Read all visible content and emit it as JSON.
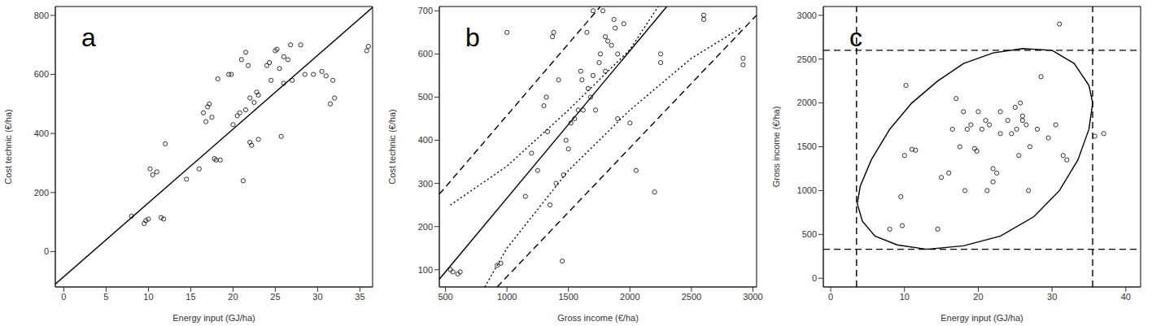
{
  "chart_data": [
    {
      "type": "scatter",
      "title": "a",
      "x_label": "Energy input (GJ/ha)",
      "y_label": "Cost technic (€/ha)",
      "xlim": [
        -1,
        36.5
      ],
      "ylim": [
        -120,
        830
      ],
      "xticks": [
        0,
        5,
        10,
        15,
        20,
        25,
        30,
        35
      ],
      "yticks": [
        0,
        200,
        400,
        600,
        800
      ],
      "series": [
        {
          "type": "scatter",
          "marker": "circle",
          "color": "#000000",
          "x": [
            8,
            9.5,
            9.7,
            10,
            10.2,
            10.5,
            11,
            11.5,
            11.8,
            12,
            14.5,
            16,
            16.5,
            16.8,
            17,
            17.2,
            17.5,
            17.8,
            18,
            18.2,
            18.5,
            19.5,
            19.8,
            20,
            20.5,
            20.8,
            21,
            21.2,
            21.5,
            21.5,
            21.8,
            22,
            22,
            22.2,
            22.5,
            22.8,
            23,
            23,
            24,
            24.3,
            24.5,
            25,
            25.2,
            25.5,
            25.7,
            26,
            26,
            26.5,
            26.8,
            27,
            28,
            28.5,
            29.5,
            30.5,
            31,
            31.5,
            31.8,
            32,
            35.8,
            36
          ],
          "values": [
            120,
            95,
            105,
            110,
            280,
            260,
            270,
            115,
            110,
            365,
            245,
            280,
            470,
            440,
            490,
            500,
            455,
            315,
            310,
            585,
            310,
            600,
            600,
            430,
            460,
            470,
            650,
            240,
            675,
            480,
            630,
            370,
            520,
            360,
            505,
            540,
            530,
            380,
            630,
            640,
            580,
            680,
            685,
            620,
            390,
            660,
            570,
            650,
            700,
            580,
            700,
            600,
            600,
            610,
            595,
            500,
            580,
            520,
            680,
            695
          ]
        },
        {
          "type": "line",
          "line_style": "solid",
          "color": "#000000",
          "x": [
            -1,
            36.5
          ],
          "values": [
            -110,
            827
          ]
        }
      ]
    },
    {
      "type": "scatter",
      "title": "b",
      "x_label": "Gross income (€/ha)",
      "y_label": "Cost technic (€/ha)",
      "xlim": [
        450,
        3030
      ],
      "ylim": [
        60,
        710
      ],
      "xticks": [
        500,
        1000,
        1500,
        2000,
        2500,
        3000
      ],
      "yticks": [
        100,
        200,
        300,
        400,
        500,
        600,
        700
      ],
      "series": [
        {
          "type": "scatter",
          "marker": "circle",
          "color": "#000000",
          "x": [
            540,
            560,
            600,
            620,
            920,
            950,
            1000,
            1150,
            1200,
            1250,
            1300,
            1320,
            1330,
            1350,
            1370,
            1380,
            1400,
            1420,
            1450,
            1460,
            1480,
            1500,
            1520,
            1550,
            1580,
            1600,
            1610,
            1620,
            1650,
            1660,
            1680,
            1700,
            1700,
            1720,
            1750,
            1760,
            1780,
            1800,
            1800,
            1820,
            1850,
            1870,
            1880,
            1900,
            1900,
            1950,
            2000,
            2050,
            2200,
            2250,
            2250,
            2600,
            2600,
            2920,
            2920
          ],
          "values": [
            100,
            95,
            90,
            95,
            110,
            115,
            650,
            270,
            370,
            330,
            480,
            500,
            420,
            250,
            640,
            650,
            300,
            540,
            120,
            320,
            400,
            380,
            440,
            450,
            470,
            560,
            540,
            470,
            650,
            520,
            500,
            700,
            550,
            470,
            580,
            600,
            700,
            640,
            560,
            630,
            620,
            680,
            660,
            600,
            450,
            670,
            440,
            330,
            280,
            600,
            580,
            680,
            690,
            590,
            575
          ]
        },
        {
          "type": "line",
          "line_style": "solid",
          "color": "#000000",
          "x": [
            450,
            2300
          ],
          "values": [
            78,
            710
          ]
        },
        {
          "type": "line",
          "line_style": "dashed",
          "color": "#000000",
          "x": [
            450,
            1760
          ],
          "values": [
            275,
            710
          ]
        },
        {
          "type": "line",
          "line_style": "dashed",
          "color": "#000000",
          "x": [
            920,
            3030
          ],
          "values": [
            60,
            690
          ]
        },
        {
          "type": "line",
          "line_style": "dotted",
          "color": "#000000",
          "x": [
            540,
            1000,
            1500,
            2000,
            2230
          ],
          "values": [
            250,
            340,
            470,
            610,
            710
          ]
        },
        {
          "type": "line",
          "line_style": "dotted",
          "color": "#000000",
          "x": [
            820,
            1000,
            1500,
            2000,
            2500,
            2900
          ],
          "values": [
            60,
            150,
            330,
            470,
            590,
            660
          ]
        }
      ]
    },
    {
      "type": "scatter",
      "title": "c",
      "x_label": "Energy input (GJ/ha)",
      "y_label": "Gross income (€/ha)",
      "xlim": [
        -1,
        42
      ],
      "ylim": [
        -100,
        3100
      ],
      "xticks": [
        0,
        10,
        20,
        30,
        40
      ],
      "yticks": [
        0,
        500,
        1000,
        1500,
        2000,
        2500,
        3000
      ],
      "series": [
        {
          "type": "scatter",
          "marker": "circle",
          "color": "#000000",
          "x": [
            8,
            9.5,
            9.7,
            10,
            10.2,
            11,
            11.5,
            14.5,
            15,
            16,
            16.5,
            17,
            17.5,
            18,
            18.2,
            18.5,
            19,
            19.5,
            19.8,
            20,
            20.5,
            21,
            21.2,
            21.5,
            22,
            22,
            22.5,
            23,
            23,
            24,
            24.5,
            25,
            25.2,
            25.5,
            25.7,
            26,
            26,
            26.5,
            26.8,
            27,
            28,
            28.5,
            29.5,
            30.5,
            31,
            31.5,
            32,
            35.8,
            37
          ],
          "values": [
            560,
            930,
            600,
            1400,
            2200,
            1470,
            1460,
            560,
            1150,
            1200,
            1700,
            2050,
            1500,
            1900,
            1000,
            1700,
            1750,
            1480,
            1450,
            1900,
            1700,
            1800,
            1000,
            1750,
            1250,
            1100,
            1200,
            1650,
            1900,
            1800,
            1650,
            1950,
            1700,
            1400,
            2000,
            1800,
            1850,
            1750,
            1000,
            1500,
            1700,
            2300,
            1600,
            1750,
            2900,
            1400,
            1350,
            1620,
            1650
          ]
        },
        {
          "type": "line",
          "line_style": "solid",
          "color": "#000000",
          "x": [
            3.6,
            4,
            5.5,
            8,
            11,
            14.5,
            18,
            22,
            26,
            30,
            33,
            35,
            35.5,
            35,
            33.5,
            31,
            27.5,
            23,
            18,
            13,
            9,
            6,
            4.3,
            3.6
          ],
          "values": [
            850,
            1050,
            1350,
            1700,
            2000,
            2250,
            2450,
            2570,
            2620,
            2600,
            2450,
            2200,
            2000,
            1700,
            1350,
            1000,
            700,
            480,
            370,
            330,
            380,
            480,
            650,
            850
          ]
        },
        {
          "type": "line",
          "line_style": "dashed",
          "color": "#000000",
          "x": [
            3.5,
            3.5
          ],
          "values": [
            -100,
            3100
          ]
        },
        {
          "type": "line",
          "line_style": "dashed",
          "color": "#000000",
          "x": [
            35.5,
            35.5
          ],
          "values": [
            -100,
            3100
          ]
        },
        {
          "type": "line",
          "line_style": "dashed",
          "color": "#000000",
          "x": [
            -1,
            42
          ],
          "values": [
            330,
            330
          ]
        },
        {
          "type": "line",
          "line_style": "dashed",
          "color": "#000000",
          "x": [
            -1,
            42
          ],
          "values": [
            2600,
            2600
          ]
        }
      ]
    }
  ]
}
